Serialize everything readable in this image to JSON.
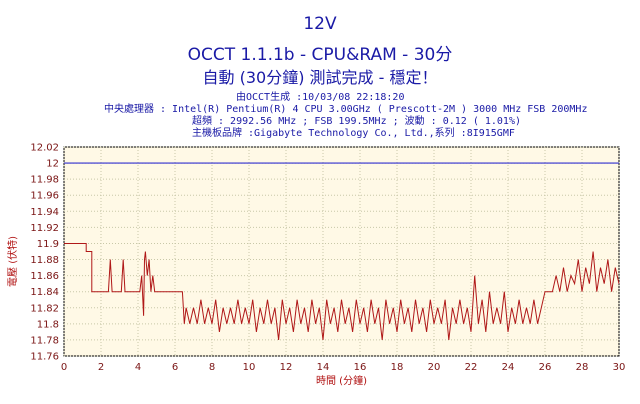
{
  "header": {
    "title": "12V",
    "subtitle": "OCCT 1.1.1b - CPU&RAM - 30分",
    "status": "自動 (30分鐘) 測試完成 - 穩定！"
  },
  "info": {
    "generated": "由OCCT生成 :10/03/08 22:18:20",
    "cpu": "中央處理器 : Intel(R) Pentium(R) 4 CPU 3.00GHz ( Prescott-2M ) 3000 MHz FSB 200MHz",
    "freq": "超頻 : 2992.56 MHz ; FSB 199.5MHz ; 波動 : 0.12 ( 1.01%)",
    "board": "主機板品牌 :Gigabyte Technology Co., Ltd.,系列 :8I915GMF"
  },
  "colors": {
    "plot_bg": "#fff9e6",
    "grid": "#c8c8a8",
    "reference_line": "#3030d0",
    "series_line": "#b01818",
    "text_blue": "#1a1aa6",
    "axis_text": "#7a1414"
  },
  "chart_data": {
    "type": "line",
    "title": "12V",
    "xlabel": "時間 (分鐘)",
    "ylabel": "電壓 (伏特)",
    "xlim": [
      0,
      30
    ],
    "ylim": [
      11.76,
      12.02
    ],
    "xticks": [
      0,
      2,
      4,
      6,
      8,
      10,
      12,
      14,
      16,
      18,
      20,
      22,
      24,
      26,
      28,
      30
    ],
    "yticks": [
      11.76,
      11.78,
      11.8,
      11.82,
      11.84,
      11.86,
      11.88,
      11.9,
      11.92,
      11.94,
      11.96,
      11.98,
      12,
      12.02
    ],
    "ytick_labels": [
      "11.76",
      "11.78",
      "11.8",
      "11.82",
      "11.84",
      "11.86",
      "11.88",
      "11.9",
      "11.92",
      "11.94",
      "11.96",
      "11.98",
      "12",
      "12.02"
    ],
    "grid": true,
    "reference": {
      "y": 12.0
    },
    "series": [
      {
        "x": [
          0,
          1.2,
          1.2,
          1.5,
          1.5,
          2.4,
          2.5,
          2.6,
          3.1,
          3.2,
          3.3,
          4.1,
          4.2,
          4.3,
          4.35,
          4.4,
          4.5,
          4.6,
          4.7,
          4.8,
          4.9,
          5.0,
          5.1,
          6.4,
          6.5,
          6.6,
          6.8,
          7.0,
          7.2,
          7.4,
          7.6,
          7.8,
          8.0,
          8.2,
          8.4,
          8.6,
          8.8,
          9.0,
          9.2,
          9.4,
          9.6,
          9.8,
          10.0,
          10.2,
          10.4,
          10.6,
          10.8,
          11.0,
          11.2,
          11.4,
          11.6,
          11.8,
          12.0,
          12.2,
          12.4,
          12.6,
          12.8,
          13.0,
          13.2,
          13.4,
          13.6,
          13.8,
          14.0,
          14.2,
          14.4,
          14.6,
          14.8,
          15.0,
          15.2,
          15.4,
          15.6,
          15.8,
          16.0,
          16.2,
          16.4,
          16.6,
          16.8,
          17.0,
          17.2,
          17.4,
          17.6,
          17.8,
          18.0,
          18.2,
          18.4,
          18.6,
          18.8,
          19.0,
          19.2,
          19.4,
          19.6,
          19.8,
          20.0,
          20.2,
          20.4,
          20.6,
          20.8,
          21.0,
          21.2,
          21.4,
          21.6,
          21.8,
          22.0,
          22.2,
          22.4,
          22.6,
          22.8,
          23.0,
          23.2,
          23.4,
          23.6,
          23.8,
          24.0,
          24.2,
          24.4,
          24.6,
          24.8,
          25.0,
          25.2,
          25.4,
          25.6,
          25.8,
          26.0,
          26.2,
          26.4,
          26.6,
          26.8,
          27.0,
          27.2,
          27.4,
          27.6,
          27.8,
          28.0,
          28.2,
          28.4,
          28.6,
          28.8,
          29.0,
          29.2,
          29.4,
          29.6,
          29.8,
          30.0
        ],
        "y": [
          11.9,
          11.9,
          11.89,
          11.89,
          11.84,
          11.84,
          11.88,
          11.84,
          11.84,
          11.88,
          11.84,
          11.84,
          11.86,
          11.81,
          11.88,
          11.89,
          11.86,
          11.88,
          11.84,
          11.86,
          11.84,
          11.84,
          11.84,
          11.84,
          11.8,
          11.82,
          11.8,
          11.82,
          11.8,
          11.83,
          11.8,
          11.82,
          11.8,
          11.83,
          11.79,
          11.82,
          11.8,
          11.82,
          11.8,
          11.83,
          11.8,
          11.82,
          11.8,
          11.83,
          11.79,
          11.82,
          11.8,
          11.83,
          11.8,
          11.82,
          11.78,
          11.83,
          11.8,
          11.82,
          11.79,
          11.83,
          11.8,
          11.82,
          11.79,
          11.83,
          11.8,
          11.82,
          11.78,
          11.83,
          11.8,
          11.82,
          11.79,
          11.83,
          11.8,
          11.82,
          11.79,
          11.83,
          11.8,
          11.82,
          11.79,
          11.83,
          11.8,
          11.82,
          11.78,
          11.83,
          11.8,
          11.82,
          11.79,
          11.83,
          11.8,
          11.82,
          11.79,
          11.83,
          11.8,
          11.82,
          11.79,
          11.83,
          11.8,
          11.82,
          11.8,
          11.83,
          11.78,
          11.82,
          11.8,
          11.83,
          11.8,
          11.82,
          11.79,
          11.86,
          11.8,
          11.83,
          11.79,
          11.84,
          11.8,
          11.82,
          11.8,
          11.84,
          11.79,
          11.82,
          11.8,
          11.83,
          11.8,
          11.82,
          11.8,
          11.83,
          11.8,
          11.82,
          11.84,
          11.84,
          11.84,
          11.86,
          11.84,
          11.87,
          11.84,
          11.86,
          11.85,
          11.88,
          11.84,
          11.87,
          11.85,
          11.89,
          11.84,
          11.87,
          11.85,
          11.88,
          11.84,
          11.87,
          11.85
        ]
      }
    ]
  }
}
